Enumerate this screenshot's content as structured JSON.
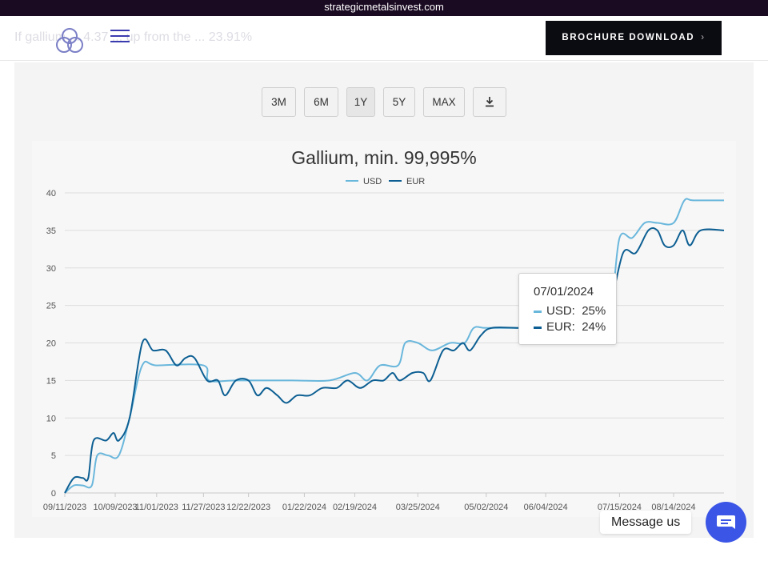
{
  "site": {
    "domain": "strategicmetalsinvest.com"
  },
  "header": {
    "faded_text": "If gallium ... 4.37 ... up from the ... 23.91%",
    "logo_icon": "triquetra-logo",
    "menu_icon": "hamburger-menu-icon",
    "brochure_label": "BROCHURE DOWNLOAD",
    "brochure_chevron": "›"
  },
  "range_buttons": [
    {
      "label": "3M",
      "active": false
    },
    {
      "label": "6M",
      "active": false
    },
    {
      "label": "1Y",
      "active": true
    },
    {
      "label": "5Y",
      "active": false
    },
    {
      "label": "MAX",
      "active": false
    }
  ],
  "download_icon": "download-icon",
  "tooltip": {
    "date": "07/01/2024",
    "rows": [
      {
        "series": "USD",
        "value": "25%",
        "color": "#6ab7dc"
      },
      {
        "series": "EUR",
        "value": "24%",
        "color": "#0d5f93"
      }
    ]
  },
  "chat": {
    "label": "Message us",
    "icon": "chat-bubble-icon",
    "color": "#3b55e6"
  },
  "chart_data": {
    "type": "line",
    "title": "Gallium, min. 99,995%",
    "xlabel": "",
    "ylabel": "",
    "ylim": [
      0,
      40
    ],
    "yticks": [
      0,
      5,
      10,
      15,
      20,
      25,
      30,
      35,
      40
    ],
    "x_tick_labels": [
      "09/11/2023",
      "10/09/2023",
      "11/01/2023",
      "11/27/2023",
      "12/22/2023",
      "01/22/2024",
      "02/19/2024",
      "03/25/2024",
      "05/02/2024",
      "06/04/2024",
      "07/15/2024",
      "08/14/2024"
    ],
    "x_domain": [
      "2023-09-11",
      "2024-09-11"
    ],
    "grid": true,
    "legend": "top-center",
    "series": [
      {
        "name": "USD",
        "color": "#6ab7dc",
        "points": [
          [
            "2023-09-11",
            0
          ],
          [
            "2023-09-16",
            1
          ],
          [
            "2023-09-21",
            1
          ],
          [
            "2023-09-26",
            1
          ],
          [
            "2023-09-29",
            5
          ],
          [
            "2023-10-05",
            5
          ],
          [
            "2023-10-11",
            5
          ],
          [
            "2023-10-17",
            10
          ],
          [
            "2023-10-24",
            17
          ],
          [
            "2023-11-01",
            17
          ],
          [
            "2023-11-27",
            17
          ],
          [
            "2023-11-30",
            15
          ],
          [
            "2023-12-15",
            15
          ],
          [
            "2024-01-15",
            15
          ],
          [
            "2024-02-05",
            15
          ],
          [
            "2024-02-19",
            16
          ],
          [
            "2024-02-26",
            15
          ],
          [
            "2024-03-04",
            17
          ],
          [
            "2024-03-14",
            17
          ],
          [
            "2024-03-18",
            20
          ],
          [
            "2024-03-25",
            20
          ],
          [
            "2024-04-02",
            19
          ],
          [
            "2024-04-12",
            20
          ],
          [
            "2024-04-20",
            20
          ],
          [
            "2024-04-25",
            22
          ],
          [
            "2024-05-02",
            22
          ],
          [
            "2024-05-20",
            22
          ],
          [
            "2024-06-10",
            22
          ],
          [
            "2024-06-25",
            25
          ],
          [
            "2024-07-01",
            25
          ],
          [
            "2024-07-10",
            25
          ],
          [
            "2024-07-15",
            34
          ],
          [
            "2024-07-22",
            34
          ],
          [
            "2024-07-29",
            36
          ],
          [
            "2024-08-05",
            36
          ],
          [
            "2024-08-14",
            36
          ],
          [
            "2024-08-20",
            39
          ],
          [
            "2024-08-25",
            39
          ],
          [
            "2024-09-11",
            39
          ]
        ]
      },
      {
        "name": "EUR",
        "color": "#0d5f93",
        "points": [
          [
            "2023-09-11",
            0
          ],
          [
            "2023-09-16",
            2
          ],
          [
            "2023-09-21",
            2
          ],
          [
            "2023-09-24",
            2
          ],
          [
            "2023-09-27",
            7
          ],
          [
            "2023-10-04",
            7
          ],
          [
            "2023-10-08",
            8
          ],
          [
            "2023-10-11",
            7
          ],
          [
            "2023-10-17",
            10
          ],
          [
            "2023-10-24",
            20
          ],
          [
            "2023-10-30",
            19
          ],
          [
            "2023-11-06",
            19
          ],
          [
            "2023-11-12",
            17
          ],
          [
            "2023-11-17",
            18
          ],
          [
            "2023-11-22",
            18
          ],
          [
            "2023-11-29",
            15
          ],
          [
            "2023-12-05",
            15
          ],
          [
            "2023-12-09",
            13
          ],
          [
            "2023-12-15",
            15
          ],
          [
            "2023-12-22",
            15
          ],
          [
            "2023-12-27",
            13
          ],
          [
            "2024-01-01",
            14
          ],
          [
            "2024-01-07",
            13
          ],
          [
            "2024-01-12",
            12
          ],
          [
            "2024-01-18",
            13
          ],
          [
            "2024-01-25",
            13
          ],
          [
            "2024-02-01",
            14
          ],
          [
            "2024-02-09",
            14
          ],
          [
            "2024-02-15",
            15
          ],
          [
            "2024-02-22",
            14
          ],
          [
            "2024-02-29",
            15
          ],
          [
            "2024-03-06",
            15
          ],
          [
            "2024-03-11",
            16
          ],
          [
            "2024-03-15",
            15
          ],
          [
            "2024-03-22",
            16
          ],
          [
            "2024-03-28",
            16
          ],
          [
            "2024-04-01",
            15
          ],
          [
            "2024-04-08",
            19
          ],
          [
            "2024-04-14",
            19
          ],
          [
            "2024-04-19",
            20
          ],
          [
            "2024-04-23",
            19
          ],
          [
            "2024-04-29",
            21
          ],
          [
            "2024-05-05",
            22
          ],
          [
            "2024-05-20",
            22
          ],
          [
            "2024-06-10",
            22
          ],
          [
            "2024-06-25",
            24
          ],
          [
            "2024-07-01",
            24
          ],
          [
            "2024-07-06",
            24
          ],
          [
            "2024-07-10",
            25
          ],
          [
            "2024-07-17",
            32
          ],
          [
            "2024-07-24",
            32
          ],
          [
            "2024-07-31",
            35
          ],
          [
            "2024-08-05",
            35
          ],
          [
            "2024-08-09",
            33
          ],
          [
            "2024-08-14",
            33
          ],
          [
            "2024-08-19",
            35
          ],
          [
            "2024-08-23",
            33
          ],
          [
            "2024-08-29",
            35
          ],
          [
            "2024-09-11",
            35
          ]
        ]
      }
    ]
  }
}
